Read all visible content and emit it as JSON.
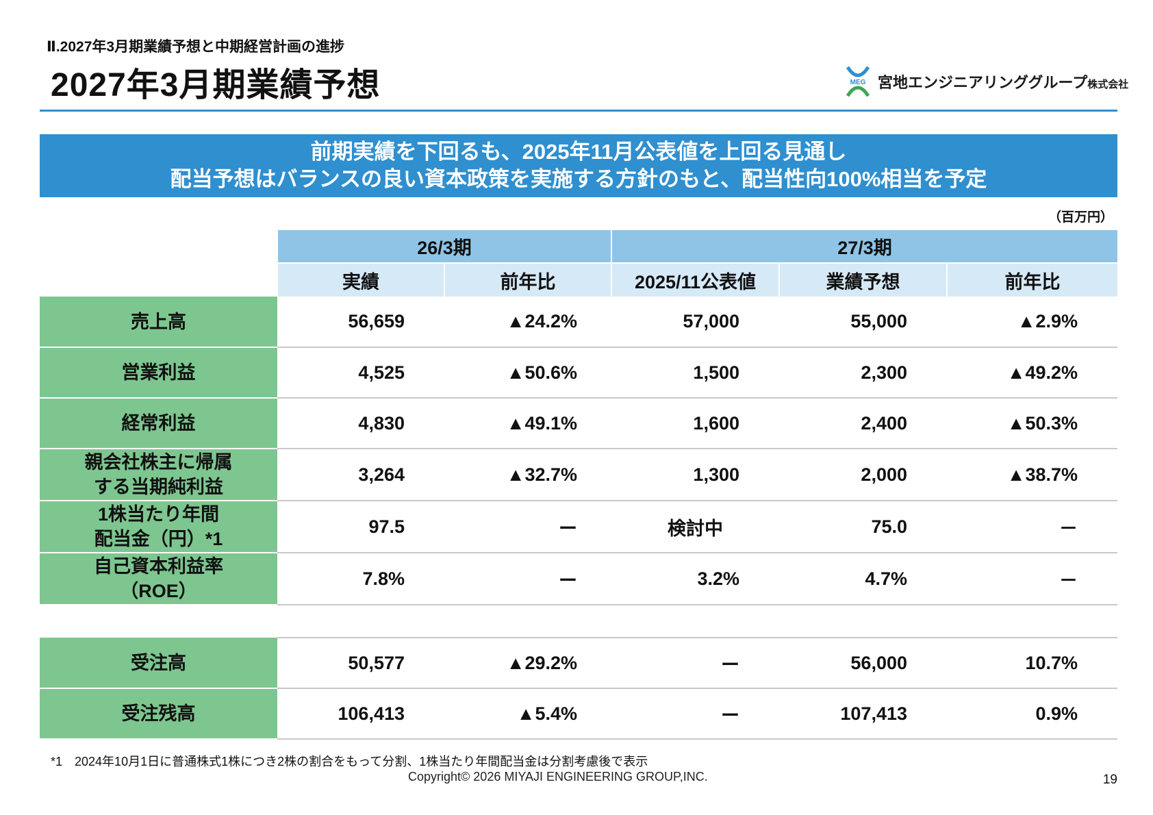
{
  "header": {
    "section_label": "Ⅱ.2027年3月期業績予想と中期経営計画の進捗",
    "title": "2027年3月期業績予想",
    "company_name": "宮地エンジニアリンググループ",
    "company_suffix": "株式会社",
    "logo_icon": "meg-logo-icon",
    "logo_text": "MEG"
  },
  "banner": {
    "line1": "前期実績を下回るも、2025年11月公表値を上回る見通し",
    "line2": "配当予想はバランスの良い資本政策を実施する方針のもと、配当性向100%相当を予定",
    "color": "#2f8fcf"
  },
  "unit": "（百万円）",
  "table": {
    "group_headers": [
      "26/3期",
      "27/3期"
    ],
    "sub_headers": [
      "実績",
      "前年比",
      "2025/11公表値",
      "業績予想",
      "前年比"
    ],
    "rows": [
      {
        "label": "売上高",
        "cells": [
          "56,659",
          "▲24.2%",
          "57,000",
          "55,000",
          "▲2.9%"
        ]
      },
      {
        "label": "営業利益",
        "cells": [
          "4,525",
          "▲50.6%",
          "1,500",
          "2,300",
          "▲49.2%"
        ]
      },
      {
        "label": "経常利益",
        "cells": [
          "4,830",
          "▲49.1%",
          "1,600",
          "2,400",
          "▲50.3%"
        ]
      },
      {
        "label1": "親会社株主に帰属",
        "label2": "する当期純利益",
        "cells": [
          "3,264",
          "▲32.7%",
          "1,300",
          "2,000",
          "▲38.7%"
        ]
      },
      {
        "label1": "1株当たり年間",
        "label2": "配当金（円）*1",
        "cells": [
          "97.5",
          "ー",
          "検討中",
          "75.0",
          "－"
        ]
      },
      {
        "label1": "自己資本利益率",
        "label2": "（ROE）",
        "cells": [
          "7.8%",
          "ー",
          "3.2%",
          "4.7%",
          "－"
        ]
      }
    ],
    "rows_orders": [
      {
        "label": "受注高",
        "cells": [
          "50,577",
          "▲29.2%",
          "ー",
          "56,000",
          "10.7%"
        ]
      },
      {
        "label": "受注残高",
        "cells": [
          "106,413",
          "▲5.4%",
          "ー",
          "107,413",
          "0.9%"
        ]
      }
    ]
  },
  "footnote": "*1　2024年10月1日に普通株式1株につき2株の割合をもって分割、1株当たり年間配当金は分割考慮後で表示",
  "copyright": "Copyright© 2026 MIYAJI ENGINEERING GROUP,INC.",
  "page_number": "19"
}
